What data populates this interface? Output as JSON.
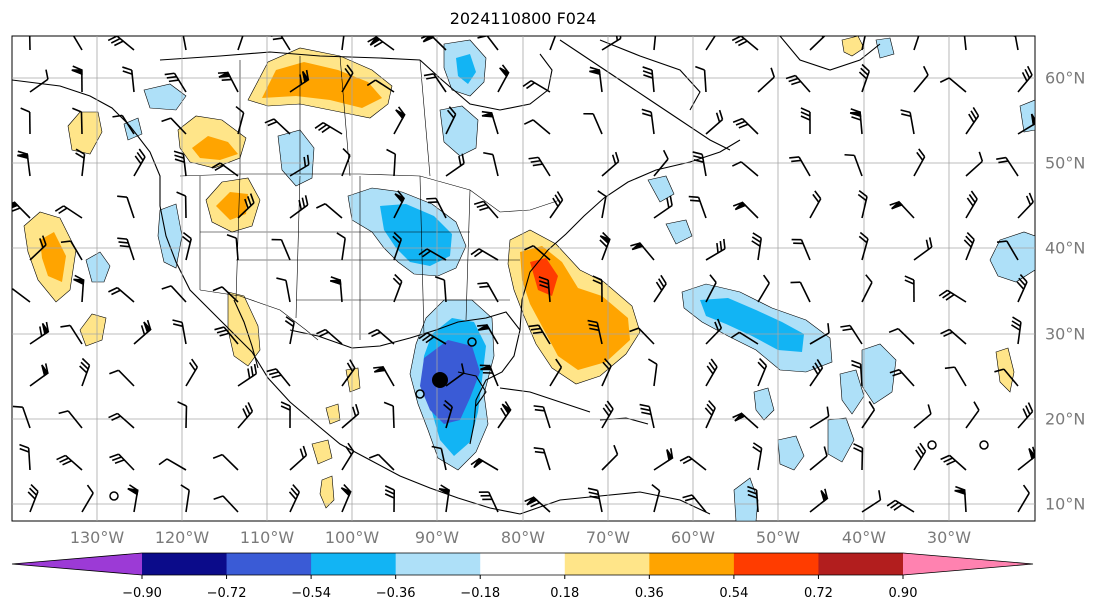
{
  "title": "2024110800 F024",
  "axes": {
    "lon_labels": [
      "130°W",
      "120°W",
      "110°W",
      "100°W",
      "90°W",
      "80°W",
      "70°W",
      "60°W",
      "50°W",
      "40°W",
      "30°W"
    ],
    "lat_labels": [
      "60°N",
      "50°N",
      "40°N",
      "30°N",
      "20°N",
      "10°N"
    ],
    "lon_range": [
      -135,
      -15
    ],
    "lat_range": [
      8,
      65
    ]
  },
  "colorbar": {
    "labels": [
      "−0.90",
      "−0.72",
      "−0.54",
      "−0.36",
      "−0.18",
      "0.18",
      "0.36",
      "0.54",
      "0.72",
      "0.90"
    ],
    "colors": [
      "#9c3ad6",
      "#0b0b8a",
      "#3a5bd6",
      "#12b4f4",
      "#aee0f8",
      "#ffffff",
      "#ffe589",
      "#ffa400",
      "#ff3c00",
      "#b21e1e",
      "#ff82b0"
    ]
  }
}
